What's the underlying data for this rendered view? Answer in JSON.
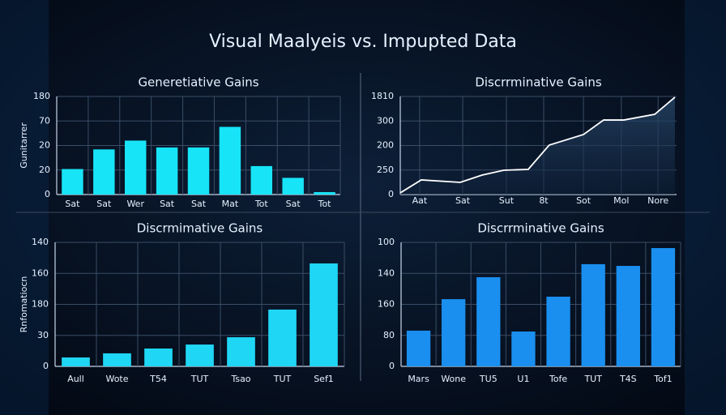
{
  "title": "Visual Maalyeis vs. Impupted Data",
  "chart_data": [
    {
      "type": "bar",
      "title": "Generetiative Gains",
      "y_label": "Gunitarrer",
      "categories": [
        "Sat",
        "Sat",
        "Wer",
        "Sat",
        "Sat",
        "Mat",
        "Tot",
        "Sat",
        "Tot"
      ],
      "values": [
        26,
        46,
        55,
        48,
        48,
        69,
        29,
        17,
        2.5
      ],
      "color": "#18e4f8",
      "ylim": [
        0,
        100
      ],
      "yticks": [
        0,
        {
          "value": 25,
          "label": "20"
        },
        {
          "value": 50,
          "label": "20"
        },
        {
          "value": 75,
          "label": "70"
        },
        {
          "value": 100,
          "label": "180"
        }
      ],
      "grid": true
    },
    {
      "type": "line",
      "title": "Discrrminative Gains",
      "x": [
        0,
        7.6,
        21.7,
        29.6,
        37.5,
        46.3,
        53.9,
        66.3,
        73.6,
        80.9,
        92.1,
        99.4
      ],
      "values": [
        1.7,
        14.9,
        12.4,
        19.8,
        24.8,
        25.6,
        50.4,
        61.2,
        76,
        76,
        81.8,
        99.2
      ],
      "color": "#ffffff",
      "xlim": [
        0,
        100
      ],
      "xticks": [
        {
          "value": 7,
          "label": "Aat"
        },
        {
          "value": 22.6,
          "label": "Sat"
        },
        {
          "value": 38.4,
          "label": "Sut"
        },
        {
          "value": 51.9,
          "label": "8t"
        },
        {
          "value": 66.3,
          "label": "Sot"
        },
        {
          "value": 80,
          "label": "Mol"
        },
        {
          "value": 93.3,
          "label": "Nore"
        }
      ],
      "ylim": [
        0,
        100
      ],
      "yticks": [
        0,
        {
          "value": 25,
          "label": "250"
        },
        {
          "value": 50,
          "label": "200"
        },
        {
          "value": 75,
          "label": "300"
        },
        {
          "value": 100,
          "label": "1810"
        }
      ],
      "grid": true
    },
    {
      "type": "bar",
      "title": "Discrmimative Gains",
      "y_label": "Rnfomatiocn",
      "categories": [
        "Aull",
        "Wote",
        "T54",
        "TUT",
        "Tsao",
        "TUT",
        "Sef1"
      ],
      "values": [
        7.2,
        10.5,
        14.4,
        17.6,
        23.5,
        45.8,
        83
      ],
      "color": "#1fd6f5",
      "ylim": [
        0,
        100
      ],
      "yticks": [
        0,
        {
          "value": 25,
          "label": "30"
        },
        {
          "value": 50,
          "label": "180"
        },
        {
          "value": 75,
          "label": "160"
        },
        {
          "value": 100,
          "label": "140"
        }
      ],
      "grid": true
    },
    {
      "type": "bar",
      "title": "Discrrminative Gains",
      "categories": [
        "Mars",
        "Wone",
        "TU5",
        "U1",
        "Tofe",
        "TUT",
        "T4S",
        "Tof1"
      ],
      "values": [
        28.8,
        54.2,
        71.9,
        28.1,
        56.2,
        82.4,
        81,
        95.4
      ],
      "color": "#1a8fef",
      "ylim": [
        0,
        100
      ],
      "yticks": [
        0,
        {
          "value": 25,
          "label": "80"
        },
        {
          "value": 50,
          "label": "160"
        },
        {
          "value": 75,
          "label": "140"
        },
        {
          "value": 100,
          "label": "100"
        }
      ],
      "grid": true
    }
  ]
}
